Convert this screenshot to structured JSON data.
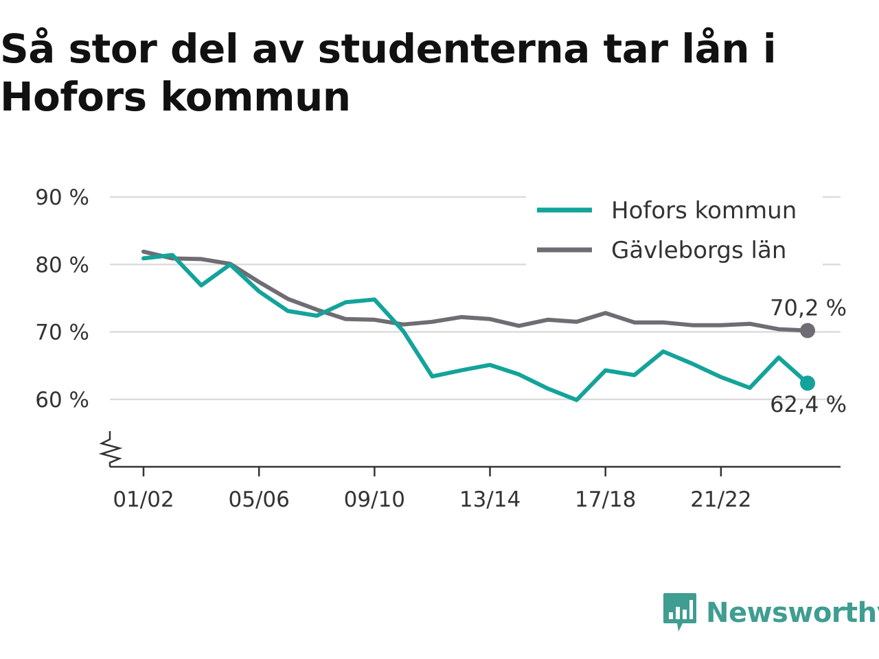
{
  "title": "Så stor del av studenterna tar lån i Hofors kommun",
  "brand": {
    "name": "Newsworthy",
    "icon": "newsworthy-logo-icon",
    "color": "#3f9d91"
  },
  "chart_data": {
    "type": "line",
    "title": "Så stor del av studenterna tar lån i Hofors kommun",
    "xlabel": "",
    "ylabel": "",
    "ylim": [
      50,
      90
    ],
    "y_ticks": [
      60,
      70,
      80,
      90
    ],
    "y_tick_labels": [
      "60 %",
      "70 %",
      "80 %",
      "90 %"
    ],
    "y_axis_break": true,
    "x_tick_labels": [
      "01/02",
      "05/06",
      "09/10",
      "13/14",
      "17/18",
      "21/22"
    ],
    "x_tick_indices": [
      0,
      4,
      8,
      12,
      16,
      20
    ],
    "x": [
      "01/02",
      "02/03",
      "03/04",
      "04/05",
      "05/06",
      "06/07",
      "07/08",
      "08/09",
      "09/10",
      "10/11",
      "11/12",
      "12/13",
      "13/14",
      "14/15",
      "15/16",
      "16/17",
      "17/18",
      "18/19",
      "19/20",
      "20/21",
      "21/22",
      "22/23",
      "23/24",
      "24/25"
    ],
    "grid": true,
    "legend_position": "top-right",
    "series": [
      {
        "name": "Hofors kommun",
        "color": "#14a39a",
        "values": [
          80.9,
          81.4,
          76.9,
          80.0,
          76.0,
          73.1,
          72.4,
          74.4,
          74.8,
          70.1,
          63.4,
          64.3,
          65.1,
          63.7,
          61.6,
          59.9,
          64.3,
          63.6,
          67.1,
          65.3,
          63.3,
          61.7,
          66.2,
          62.4
        ],
        "end_label": "62,4 %"
      },
      {
        "name": "Gävleborgs län",
        "color": "#6f6d73",
        "values": [
          81.9,
          80.9,
          80.8,
          80.1,
          77.4,
          74.9,
          73.3,
          71.9,
          71.8,
          71.1,
          71.5,
          72.2,
          71.9,
          70.9,
          71.8,
          71.5,
          72.8,
          71.4,
          71.4,
          71.0,
          71.0,
          71.2,
          70.4,
          70.2
        ],
        "end_label": "70,2 %"
      }
    ]
  }
}
